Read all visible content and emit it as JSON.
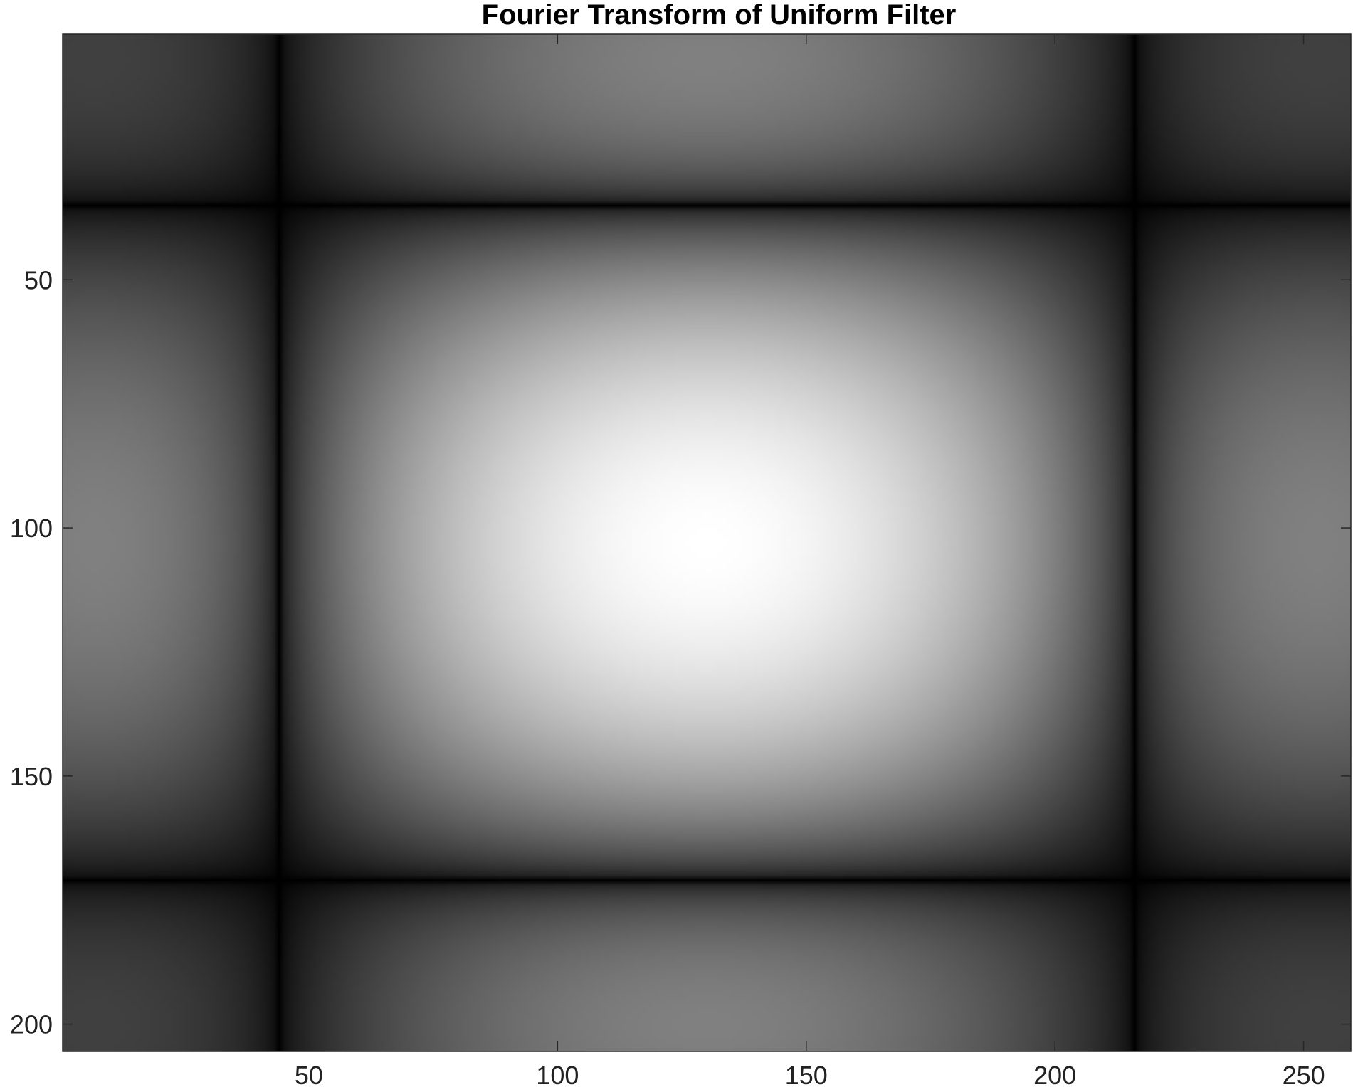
{
  "chart_data": {
    "type": "heatmap",
    "title": "Fourier Transform of Uniform Filter",
    "xlabel": "",
    "ylabel": "",
    "xlim": [
      0.5,
      259.5
    ],
    "ylim": [
      0.5,
      205.5
    ],
    "y_direction": "reverse",
    "colormap": "gray",
    "grid": false,
    "legend": "none",
    "x_ticks": [
      50,
      100,
      150,
      200,
      250
    ],
    "y_ticks": [
      50,
      100,
      150,
      200
    ],
    "x_tick_labels": [
      "50",
      "100",
      "150",
      "200",
      "250"
    ],
    "y_tick_labels": [
      "50",
      "100",
      "150",
      "200"
    ],
    "image": {
      "description_free_values": {
        "center_col": 130,
        "center_row": 103,
        "col_zero_crossings": [
          44,
          216
        ],
        "row_zero_crossings": [
          34,
          171
        ],
        "min_intensity": 0,
        "max_intensity": 1
      }
    }
  }
}
